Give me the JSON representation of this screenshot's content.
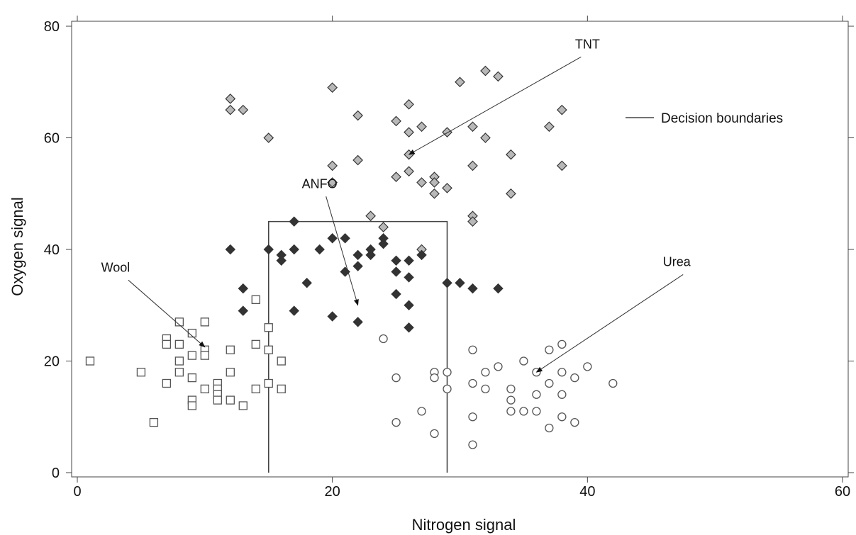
{
  "chart_data": {
    "type": "scatter",
    "xlabel": "Nitrogen signal",
    "ylabel": "Oxygen signal",
    "xlim": [
      0,
      60
    ],
    "ylim": [
      0,
      80
    ],
    "xticks": [
      0,
      20,
      40,
      60
    ],
    "yticks": [
      0,
      20,
      40,
      60,
      80
    ],
    "grid": false,
    "legend": {
      "placement": "top-right",
      "entries": [
        {
          "label": "Decision boundaries",
          "marker": "line"
        }
      ]
    },
    "decision_boundary": {
      "x": [
        15,
        15,
        29,
        29
      ],
      "y": [
        0,
        45,
        45,
        0
      ]
    },
    "series": [
      {
        "marker": "diamond-gray",
        "color": "#b8b8b8",
        "points": [
          [
            12,
            67
          ],
          [
            12,
            65
          ],
          [
            13,
            65
          ],
          [
            15,
            60
          ],
          [
            20,
            69
          ],
          [
            20,
            55
          ],
          [
            20,
            52
          ],
          [
            22,
            64
          ],
          [
            22,
            56
          ],
          [
            23,
            46
          ],
          [
            24,
            44
          ],
          [
            25,
            63
          ],
          [
            25,
            53
          ],
          [
            26,
            66
          ],
          [
            26,
            61
          ],
          [
            26,
            57
          ],
          [
            26,
            54
          ],
          [
            27,
            62
          ],
          [
            27,
            52
          ],
          [
            27,
            40
          ],
          [
            28,
            53
          ],
          [
            28,
            52
          ],
          [
            28,
            50
          ],
          [
            29,
            61
          ],
          [
            29,
            51
          ],
          [
            30,
            70
          ],
          [
            31,
            62
          ],
          [
            31,
            55
          ],
          [
            31,
            46
          ],
          [
            31,
            45
          ],
          [
            32,
            72
          ],
          [
            32,
            60
          ],
          [
            33,
            71
          ],
          [
            34,
            57
          ],
          [
            34,
            50
          ],
          [
            37,
            62
          ],
          [
            38,
            65
          ],
          [
            38,
            55
          ]
        ]
      },
      {
        "marker": "diamond-filled",
        "color": "#333333",
        "points": [
          [
            12,
            40
          ],
          [
            13,
            33
          ],
          [
            13,
            29
          ],
          [
            15,
            40
          ],
          [
            16,
            39
          ],
          [
            16,
            38
          ],
          [
            17,
            45
          ],
          [
            17,
            40
          ],
          [
            17,
            29
          ],
          [
            18,
            34
          ],
          [
            19,
            40
          ],
          [
            20,
            42
          ],
          [
            20,
            28
          ],
          [
            21,
            42
          ],
          [
            21,
            36
          ],
          [
            22,
            39
          ],
          [
            22,
            37
          ],
          [
            22,
            27
          ],
          [
            23,
            40
          ],
          [
            23,
            39
          ],
          [
            24,
            42
          ],
          [
            24,
            41
          ],
          [
            25,
            38
          ],
          [
            25,
            36
          ],
          [
            25,
            32
          ],
          [
            26,
            38
          ],
          [
            26,
            35
          ],
          [
            26,
            30
          ],
          [
            26,
            26
          ],
          [
            27,
            39
          ],
          [
            29,
            34
          ],
          [
            30,
            34
          ],
          [
            31,
            33
          ],
          [
            33,
            33
          ]
        ]
      },
      {
        "marker": "square-open",
        "color": "#555555",
        "points": [
          [
            1,
            20
          ],
          [
            5,
            18
          ],
          [
            6,
            9
          ],
          [
            7,
            24
          ],
          [
            7,
            23
          ],
          [
            7,
            16
          ],
          [
            8,
            27
          ],
          [
            8,
            23
          ],
          [
            8,
            20
          ],
          [
            8,
            18
          ],
          [
            9,
            25
          ],
          [
            9,
            21
          ],
          [
            9,
            17
          ],
          [
            9,
            13
          ],
          [
            9,
            12
          ],
          [
            10,
            27
          ],
          [
            10,
            22
          ],
          [
            10,
            21
          ],
          [
            10,
            15
          ],
          [
            11,
            16
          ],
          [
            11,
            15
          ],
          [
            11,
            14
          ],
          [
            11,
            13
          ],
          [
            12,
            22
          ],
          [
            12,
            18
          ],
          [
            12,
            13
          ],
          [
            13,
            12
          ],
          [
            14,
            31
          ],
          [
            14,
            23
          ],
          [
            14,
            15
          ],
          [
            15,
            26
          ],
          [
            15,
            22
          ],
          [
            15,
            16
          ],
          [
            16,
            20
          ],
          [
            16,
            15
          ]
        ]
      },
      {
        "marker": "circle-open",
        "color": "#555555",
        "points": [
          [
            24,
            24
          ],
          [
            25,
            17
          ],
          [
            25,
            9
          ],
          [
            27,
            11
          ],
          [
            28,
            18
          ],
          [
            28,
            17
          ],
          [
            28,
            7
          ],
          [
            29,
            18
          ],
          [
            29,
            15
          ],
          [
            31,
            22
          ],
          [
            31,
            16
          ],
          [
            31,
            10
          ],
          [
            31,
            5
          ],
          [
            32,
            18
          ],
          [
            32,
            15
          ],
          [
            33,
            19
          ],
          [
            34,
            15
          ],
          [
            34,
            13
          ],
          [
            34,
            11
          ],
          [
            35,
            20
          ],
          [
            35,
            11
          ],
          [
            36,
            18
          ],
          [
            36,
            14
          ],
          [
            36,
            11
          ],
          [
            37,
            22
          ],
          [
            37,
            16
          ],
          [
            37,
            8
          ],
          [
            38,
            23
          ],
          [
            38,
            18
          ],
          [
            38,
            14
          ],
          [
            38,
            10
          ],
          [
            39,
            17
          ],
          [
            39,
            9
          ],
          [
            40,
            19
          ],
          [
            42,
            16
          ]
        ]
      }
    ],
    "annotations": [
      {
        "text": "TNT",
        "text_at": [
          40,
          76
        ],
        "arrow_from": [
          39.5,
          74.5
        ],
        "arrow_to": [
          26,
          57
        ]
      },
      {
        "text": "ANFO",
        "text_at": [
          19,
          51
        ],
        "arrow_from": [
          19.5,
          49.5
        ],
        "arrow_to": [
          22,
          30
        ]
      },
      {
        "text": "Wool",
        "text_at": [
          3,
          36
        ],
        "arrow_from": [
          4,
          34.5
        ],
        "arrow_to": [
          10,
          22.5
        ]
      },
      {
        "text": "Urea",
        "text_at": [
          47,
          37
        ],
        "arrow_from": [
          47.5,
          35.5
        ],
        "arrow_to": [
          36,
          18
        ]
      }
    ]
  }
}
